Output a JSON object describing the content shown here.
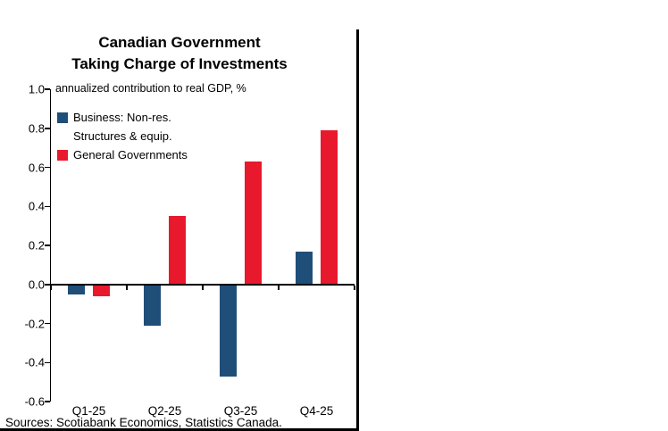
{
  "chart": {
    "title_line1": "Canadian Government",
    "title_line2": "Taking Charge of Investments",
    "subtitle": "annualized contribution to real GDP, %",
    "legend": {
      "series1_line1": "Business: Non-res.",
      "series1_line2": "Structures & equip.",
      "series2": "General Governments"
    },
    "sources": "Sources: Scotiabank Economics, Statistics Canada."
  },
  "chart_data": {
    "type": "bar",
    "title": "Canadian Government Taking Charge of Investments",
    "subtitle": "annualized contribution to real GDP, %",
    "categories": [
      "Q1-25",
      "Q2-25",
      "Q3-25",
      "Q4-25"
    ],
    "series": [
      {
        "name": "Business: Non-res. Structures & equip.",
        "color": "#1f4e79",
        "values": [
          -0.05,
          -0.21,
          -0.47,
          0.17
        ]
      },
      {
        "name": "General Governments",
        "color": "#e8192d",
        "values": [
          -0.06,
          0.35,
          0.63,
          0.79
        ]
      }
    ],
    "xlabel": "",
    "ylabel": "annualized contribution to real GDP, %",
    "ylim": [
      -0.6,
      1.0
    ],
    "ytick_step": 0.2,
    "grid": false,
    "legend_position": "top-left",
    "sources": "Sources: Scotiabank Economics, Statistics Canada."
  }
}
